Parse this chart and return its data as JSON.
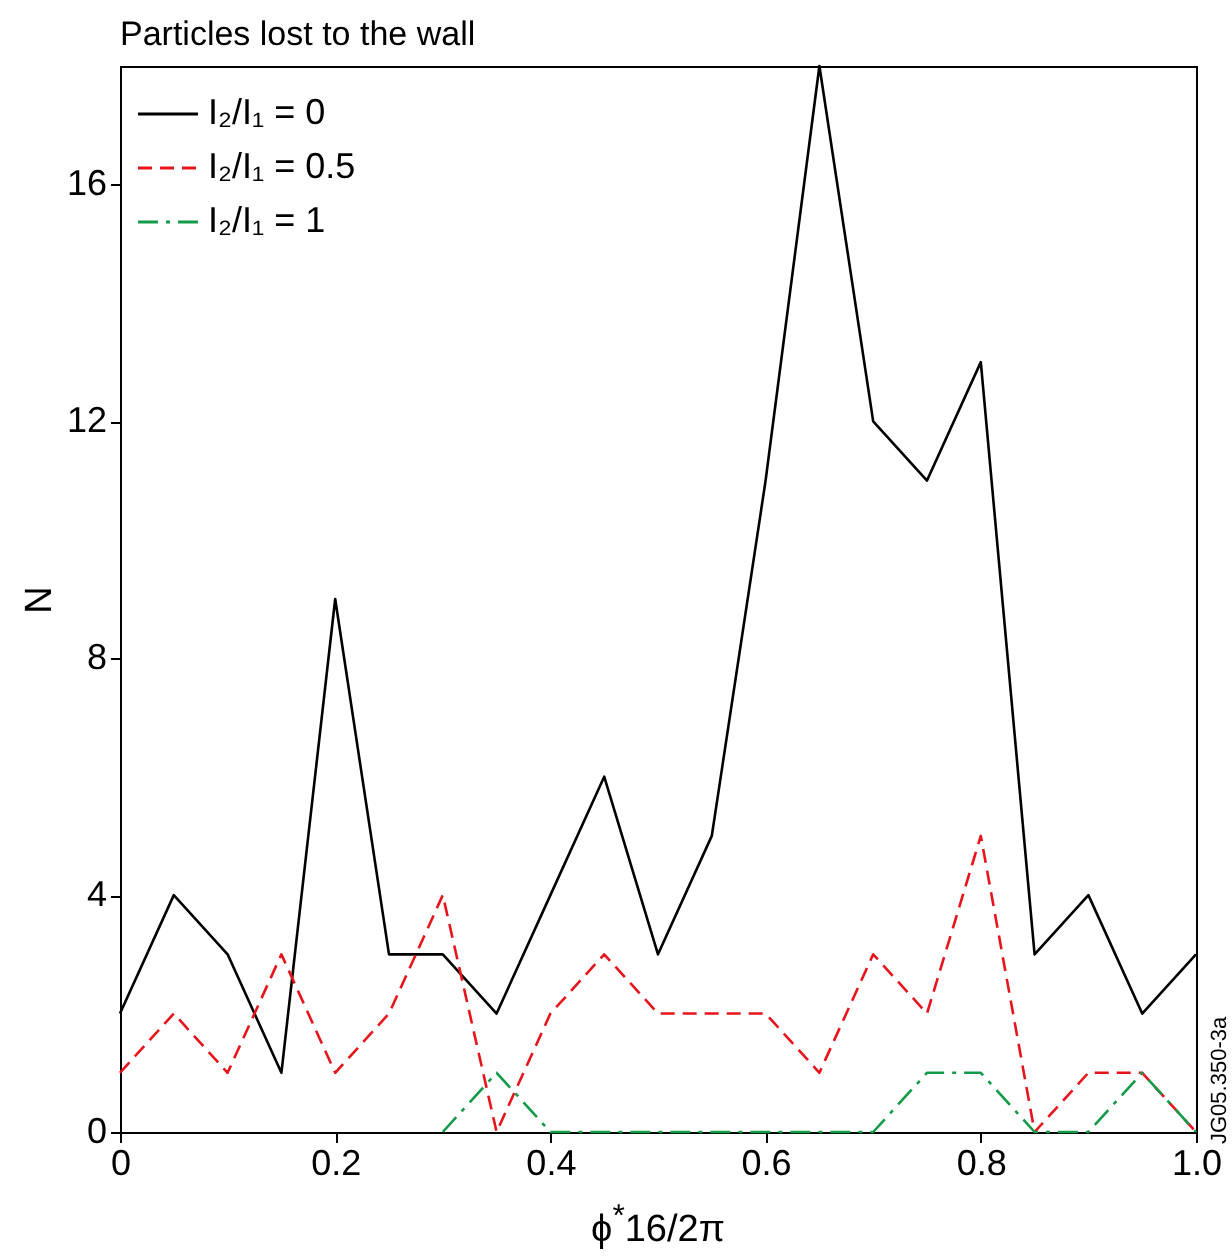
{
  "chart_data": {
    "type": "line",
    "title": "Particles lost to the wall",
    "xlabel": "ϕ$^{*}$16/2π",
    "ylabel": "N",
    "x": [
      0,
      0.05,
      0.1,
      0.15,
      0.2,
      0.25,
      0.3,
      0.35,
      0.4,
      0.45,
      0.5,
      0.55,
      0.6,
      0.65,
      0.7,
      0.75,
      0.8,
      0.85,
      0.9,
      0.95,
      1.0
    ],
    "series": [
      {
        "name": "I₂/I₁ = 0",
        "color": "#000000",
        "line_style": "solid",
        "values": [
          2,
          4,
          3,
          1,
          9,
          3,
          3,
          2,
          4,
          6,
          3,
          5,
          11,
          18,
          12,
          11,
          13,
          3,
          4,
          2,
          3
        ]
      },
      {
        "name": "I₂/I₁ = 0.5",
        "color": "#e8141c",
        "line_style": "dashed",
        "values": [
          1,
          2,
          1,
          3,
          1,
          2,
          4,
          0,
          2,
          3,
          2,
          2,
          2,
          1,
          3,
          2,
          5,
          0,
          1,
          1,
          0
        ]
      },
      {
        "name": "I₂/I₁ = 1",
        "color": "#139a48",
        "line_style": "dashdot",
        "values": [
          null,
          null,
          null,
          null,
          null,
          null,
          0,
          1,
          0,
          0,
          0,
          0,
          0,
          0,
          0,
          1,
          1,
          0,
          0,
          1,
          0
        ]
      }
    ],
    "xlim": [
      0,
      1
    ],
    "xticks": [
      0,
      0.2,
      0.4,
      0.6,
      0.8,
      {
        "value": 1,
        "label": "1.0"
      }
    ],
    "ylim": [
      0,
      18
    ],
    "yticks": [
      0,
      4,
      8,
      12,
      16
    ],
    "grid": false,
    "legend": "top left",
    "marker": "none",
    "annotations": [
      "JG05.350-3a"
    ]
  }
}
